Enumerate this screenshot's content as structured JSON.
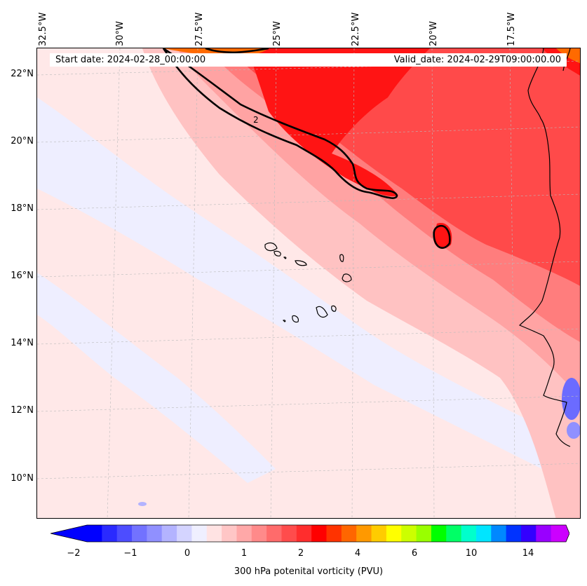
{
  "header": {
    "start_label": "Start date: 2024-02-28_00:00:00",
    "valid_label": "Valid_date: 2024-02-29T09:00:00.00"
  },
  "axes": {
    "longitude_labels": [
      "32.5°W",
      "30°W",
      "27.5°W",
      "25°W",
      "22.5°W",
      "20°W",
      "17.5°W"
    ],
    "latitude_labels": [
      "22°N",
      "20°N",
      "18°N",
      "16°N",
      "14°N",
      "12°N",
      "10°N"
    ]
  },
  "colorbar": {
    "label": "300 hPa potenital vorticity (PVU)",
    "tick_labels": [
      "−2",
      "−1",
      "0",
      "1",
      "2",
      "4",
      "6",
      "10",
      "14"
    ],
    "colors": [
      "#0000ff",
      "#2a2aff",
      "#4d4dff",
      "#7272ff",
      "#9090ff",
      "#b3b3ff",
      "#d4d4ff",
      "#efefff",
      "#ffe3e3",
      "#ffc6c6",
      "#ffa8a8",
      "#ff8a8a",
      "#ff6b6b",
      "#ff4c4c",
      "#ff2d2d",
      "#ff0000",
      "#ff3300",
      "#ff6600",
      "#ff9900",
      "#ffcc00",
      "#ffff00",
      "#ccff00",
      "#99ff00",
      "#00ff00",
      "#00ff66",
      "#00ffcc",
      "#00e5ff",
      "#0088ff",
      "#0033ff",
      "#3300ff",
      "#9900ff",
      "#cc00ff"
    ]
  },
  "map": {
    "contour_label": "2",
    "fill_colors": {
      "background": "#ffe8e8",
      "blue_band": "#eeeeff",
      "light_pink": "#ffc2c2",
      "pink": "#ffa3a3",
      "salmon": "#ff7d7d",
      "red": "#ff4a4a",
      "deep_red": "#ff1414",
      "orange": "#ff6a00",
      "blue_spot": "#6b6bff"
    }
  }
}
